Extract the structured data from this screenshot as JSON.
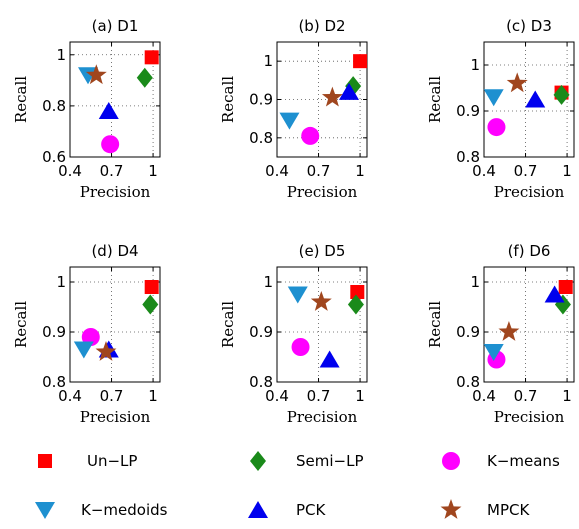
{
  "legend": [
    {
      "key": "unlp",
      "label": "Un−LP",
      "color": "#ff0000",
      "marker": "square"
    },
    {
      "key": "semilp",
      "label": "Semi−LP",
      "color": "#1a8a1a",
      "marker": "diamond"
    },
    {
      "key": "kmeans",
      "label": "K−means",
      "color": "#ff00ff",
      "marker": "circle"
    },
    {
      "key": "kmedoids",
      "label": "K−medoids",
      "color": "#1e90d0",
      "marker": "triangle-down"
    },
    {
      "key": "pck",
      "label": "PCK",
      "color": "#0000ee",
      "marker": "triangle-up"
    },
    {
      "key": "mpck",
      "label": "MPCK",
      "color": "#a0461e",
      "marker": "star"
    }
  ],
  "chart_data": [
    {
      "type": "scatter",
      "title": "(a) D1",
      "xlabel": "Precision",
      "ylabel": "Recall",
      "xlim": [
        0.4,
        1.05
      ],
      "ylim": [
        0.6,
        1.05
      ],
      "xticks": [
        0.4,
        0.7,
        1
      ],
      "xtick_labels": [
        "0.4",
        "0.7",
        "1"
      ],
      "yticks": [
        0.6,
        0.8,
        1
      ],
      "ytick_labels": [
        "0.6",
        "0.8",
        "1"
      ],
      "grid": true,
      "points": {
        "unlp": [
          0.99,
          0.99
        ],
        "semilp": [
          0.94,
          0.91
        ],
        "kmeans": [
          0.69,
          0.65
        ],
        "kmedoids": [
          0.53,
          0.92
        ],
        "pck": [
          0.68,
          0.78
        ],
        "mpck": [
          0.59,
          0.92
        ]
      }
    },
    {
      "type": "scatter",
      "title": "(b) D2",
      "xlabel": "Precision",
      "ylabel": "Recall",
      "xlim": [
        0.4,
        1.05
      ],
      "ylim": [
        0.75,
        1.05
      ],
      "xticks": [
        0.4,
        0.7,
        1
      ],
      "xtick_labels": [
        "0.4",
        "0.7",
        "1"
      ],
      "yticks": [
        0.8,
        0.9,
        1
      ],
      "ytick_labels": [
        "0.8",
        "0.9",
        "1"
      ],
      "grid": true,
      "points": {
        "unlp": [
          1.0,
          1.0
        ],
        "semilp": [
          0.95,
          0.935
        ],
        "kmeans": [
          0.64,
          0.805
        ],
        "kmedoids": [
          0.49,
          0.845
        ],
        "pck": [
          0.92,
          0.92
        ],
        "mpck": [
          0.8,
          0.905
        ]
      }
    },
    {
      "type": "scatter",
      "title": "(c) D3",
      "xlabel": "Precision",
      "ylabel": "Recall",
      "xlim": [
        0.4,
        1.05
      ],
      "ylim": [
        0.8,
        1.05
      ],
      "xticks": [
        0.4,
        0.7,
        1
      ],
      "xtick_labels": [
        "0.4",
        "0.7",
        "1"
      ],
      "yticks": [
        0.8,
        0.9,
        1
      ],
      "ytick_labels": [
        "0.8",
        "0.9",
        "1"
      ],
      "grid": true,
      "points": {
        "unlp": [
          0.96,
          0.94
        ],
        "semilp": [
          0.96,
          0.935
        ],
        "kmeans": [
          0.49,
          0.865
        ],
        "kmedoids": [
          0.47,
          0.93
        ],
        "pck": [
          0.77,
          0.925
        ],
        "mpck": [
          0.64,
          0.96
        ]
      }
    },
    {
      "type": "scatter",
      "title": "(d) D4",
      "xlabel": "Precision",
      "ylabel": "Recall",
      "xlim": [
        0.4,
        1.05
      ],
      "ylim": [
        0.8,
        1.03
      ],
      "xticks": [
        0.4,
        0.7,
        1
      ],
      "xtick_labels": [
        "0.4",
        "0.7",
        "1"
      ],
      "yticks": [
        0.8,
        0.9,
        1
      ],
      "ytick_labels": [
        "0.8",
        "0.9",
        "1"
      ],
      "grid": true,
      "points": {
        "unlp": [
          0.99,
          0.99
        ],
        "semilp": [
          0.98,
          0.955
        ],
        "kmeans": [
          0.55,
          0.89
        ],
        "kmedoids": [
          0.5,
          0.865
        ],
        "pck": [
          0.68,
          0.865
        ],
        "mpck": [
          0.66,
          0.86
        ]
      }
    },
    {
      "type": "scatter",
      "title": "(e) D5",
      "xlabel": "Precision",
      "ylabel": "Recall",
      "xlim": [
        0.4,
        1.05
      ],
      "ylim": [
        0.8,
        1.03
      ],
      "xticks": [
        0.4,
        0.7,
        1
      ],
      "xtick_labels": [
        "0.4",
        "0.7",
        "1"
      ],
      "yticks": [
        0.8,
        0.9,
        1
      ],
      "ytick_labels": [
        "0.8",
        "0.9",
        "1"
      ],
      "grid": true,
      "points": {
        "unlp": [
          0.98,
          0.98
        ],
        "semilp": [
          0.97,
          0.955
        ],
        "kmeans": [
          0.57,
          0.87
        ],
        "kmedoids": [
          0.55,
          0.975
        ],
        "pck": [
          0.78,
          0.845
        ],
        "mpck": [
          0.72,
          0.96
        ]
      }
    },
    {
      "type": "scatter",
      "title": "(f) D6",
      "xlabel": "Precision",
      "ylabel": "Recall",
      "xlim": [
        0.4,
        1.05
      ],
      "ylim": [
        0.8,
        1.03
      ],
      "xticks": [
        0.4,
        0.7,
        1
      ],
      "xtick_labels": [
        "0.4",
        "0.7",
        "1"
      ],
      "yticks": [
        0.8,
        0.9,
        1
      ],
      "ytick_labels": [
        "0.8",
        "0.9",
        "1"
      ],
      "grid": true,
      "points": {
        "unlp": [
          0.99,
          0.99
        ],
        "semilp": [
          0.97,
          0.955
        ],
        "kmeans": [
          0.49,
          0.845
        ],
        "kmedoids": [
          0.47,
          0.86
        ],
        "pck": [
          0.91,
          0.975
        ],
        "mpck": [
          0.58,
          0.9
        ]
      }
    }
  ]
}
